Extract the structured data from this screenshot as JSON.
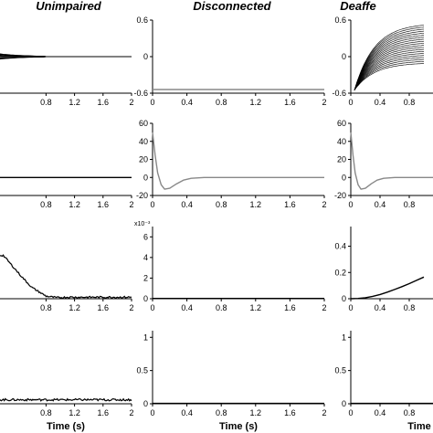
{
  "columns": [
    {
      "title": "Unimpaired"
    },
    {
      "title": "Disconnected"
    },
    {
      "title": "Deaffe"
    }
  ],
  "chart_data": [
    {
      "type": "line",
      "col": 0,
      "row": 0,
      "title": "Unimpaired",
      "xlabel": "",
      "ylabel": "",
      "xlim": [
        0,
        2
      ],
      "ylim": [
        -0.6,
        0.6
      ],
      "x_ticks": [
        "0.8",
        "1.2",
        "1.6",
        "2"
      ],
      "y_ticks": [],
      "series": [
        {
          "family": "bundle",
          "count": 14,
          "x0": 0,
          "amplitude": 0.08,
          "decay": 0.35,
          "end": 0.8,
          "color": "#000000"
        }
      ]
    },
    {
      "type": "line",
      "col": 1,
      "row": 0,
      "title": "Disconnected",
      "xlabel": "",
      "ylabel": "",
      "xlim": [
        0,
        2
      ],
      "ylim": [
        -0.6,
        0.6
      ],
      "x_ticks": [
        "0",
        "0.4",
        "0.8",
        "1.2",
        "1.6",
        "2"
      ],
      "y_ticks": [
        "0.6",
        "0",
        "-0.6"
      ],
      "series": [
        {
          "x": [
            0,
            2
          ],
          "y": [
            -0.54,
            -0.54
          ],
          "color": "#888888"
        }
      ]
    },
    {
      "type": "line",
      "col": 2,
      "row": 0,
      "title": "Deaffe",
      "xlabel": "",
      "ylabel": "",
      "xlim": [
        0,
        2
      ],
      "ylim": [
        -0.6,
        0.6
      ],
      "x_ticks": [
        "0",
        "0.4",
        "0.8"
      ],
      "y_ticks": [
        "0.6",
        "0",
        "-0.6"
      ],
      "series": [
        {
          "family": "fan",
          "count": 20,
          "x0": 0.05,
          "y0": -0.55,
          "rise": 0.45,
          "final_min": -0.1,
          "final_max": 0.55,
          "color": "#000000"
        }
      ]
    },
    {
      "type": "line",
      "col": 0,
      "row": 1,
      "xlim": [
        0,
        2
      ],
      "ylim": [
        -20,
        60
      ],
      "x_ticks": [
        "0.8",
        "1.2",
        "1.6",
        "2"
      ],
      "y_ticks": [],
      "series": [
        {
          "x": [
            0,
            2
          ],
          "y": [
            0,
            0
          ],
          "color": "#000000"
        }
      ]
    },
    {
      "type": "line",
      "col": 1,
      "row": 1,
      "xlim": [
        0,
        2
      ],
      "ylim": [
        -20,
        60
      ],
      "x_ticks": [
        "0",
        "0.4",
        "0.8",
        "1.2",
        "1.6",
        "2"
      ],
      "y_ticks": [
        "60",
        "40",
        "20",
        "0",
        "-20"
      ],
      "series": [
        {
          "x": [
            0,
            0.03,
            0.06,
            0.1,
            0.14,
            0.2,
            0.28,
            0.36,
            0.45,
            0.6,
            2
          ],
          "y": [
            50,
            25,
            5,
            -8,
            -13,
            -12,
            -7,
            -3,
            -1,
            0,
            0
          ],
          "color": "#888888"
        }
      ]
    },
    {
      "type": "line",
      "col": 2,
      "row": 1,
      "xlim": [
        0,
        2
      ],
      "ylim": [
        -20,
        60
      ],
      "x_ticks": [
        "0",
        "0.4",
        "0.8"
      ],
      "y_ticks": [
        "60",
        "40",
        "20",
        "0",
        "-20"
      ],
      "series": [
        {
          "x": [
            0,
            0.03,
            0.06,
            0.1,
            0.14,
            0.2,
            0.28,
            0.36,
            0.45,
            0.6,
            2
          ],
          "y": [
            50,
            25,
            5,
            -8,
            -13,
            -12,
            -7,
            -3,
            -1,
            0,
            0
          ],
          "color": "#888888"
        }
      ]
    },
    {
      "type": "line",
      "col": 0,
      "row": 2,
      "xlim": [
        0,
        2
      ],
      "ylim": [
        0,
        7
      ],
      "x_ticks": [
        "0.8",
        "1.2",
        "1.6",
        "2"
      ],
      "y_ticks": [],
      "series": [
        {
          "family": "noisy",
          "x": [
            0,
            0.2,
            0.3,
            0.45,
            0.6,
            0.8,
            0.95,
            1.1,
            2
          ],
          "y": [
            4.2,
            4.2,
            3.4,
            2.2,
            1.1,
            0.25,
            0.1,
            0.15,
            0.15
          ],
          "noise": 0.08,
          "color": "#000000"
        }
      ]
    },
    {
      "type": "line",
      "col": 1,
      "row": 2,
      "xlim": [
        0,
        2
      ],
      "ylim": [
        0,
        7
      ],
      "x_ticks": [
        "0",
        "0.4",
        "0.8",
        "1.2",
        "1.6",
        "2"
      ],
      "y_ticks": [
        "6",
        "4",
        "2",
        "0"
      ],
      "scale_label": "x10⁻³",
      "series": [
        {
          "x": [
            0,
            2
          ],
          "y": [
            0.03,
            0.03
          ],
          "color": "#000000"
        }
      ]
    },
    {
      "type": "line",
      "col": 2,
      "row": 2,
      "xlim": [
        0,
        2
      ],
      "ylim": [
        0,
        0.55
      ],
      "x_ticks": [
        "0",
        "0.4",
        "0.8"
      ],
      "y_ticks": [
        "0.4",
        "0.2",
        "0"
      ],
      "series": [
        {
          "x": [
            0,
            0.1,
            0.2,
            0.3,
            0.4,
            0.5,
            0.6,
            0.7,
            0.8,
            0.9,
            1.0
          ],
          "y": [
            0,
            0.002,
            0.008,
            0.018,
            0.032,
            0.05,
            0.07,
            0.092,
            0.115,
            0.14,
            0.165
          ],
          "color": "#000000"
        }
      ]
    },
    {
      "type": "line",
      "col": 0,
      "row": 3,
      "xlim": [
        0,
        2
      ],
      "ylim": [
        0,
        1.1
      ],
      "x_ticks": [
        "0.8",
        "1.2",
        "1.6",
        "2"
      ],
      "y_ticks": [],
      "xlabel": "Time (s)",
      "series": [
        {
          "family": "noisy",
          "x": [
            0,
            2
          ],
          "y": [
            0.06,
            0.06
          ],
          "noise": 0.03,
          "color": "#000000"
        }
      ]
    },
    {
      "type": "line",
      "col": 1,
      "row": 3,
      "xlim": [
        0,
        2
      ],
      "ylim": [
        0,
        1.1
      ],
      "x_ticks": [
        "0",
        "0.4",
        "0.8",
        "1.2",
        "1.6",
        "2"
      ],
      "y_ticks": [
        "1",
        "0.5",
        "0"
      ],
      "xlabel": "Time (s)",
      "series": [
        {
          "x": [
            0,
            2
          ],
          "y": [
            0.005,
            0.005
          ],
          "color": "#000000"
        }
      ]
    },
    {
      "type": "line",
      "col": 2,
      "row": 3,
      "xlim": [
        0,
        2
      ],
      "ylim": [
        0,
        1.1
      ],
      "x_ticks": [
        "0",
        "0.4",
        "0.8"
      ],
      "y_ticks": [
        "1",
        "0.5",
        "0"
      ],
      "xlabel": "Time",
      "series": [
        {
          "x": [
            0,
            2
          ],
          "y": [
            0.005,
            0.005
          ],
          "color": "#000000"
        }
      ]
    }
  ]
}
